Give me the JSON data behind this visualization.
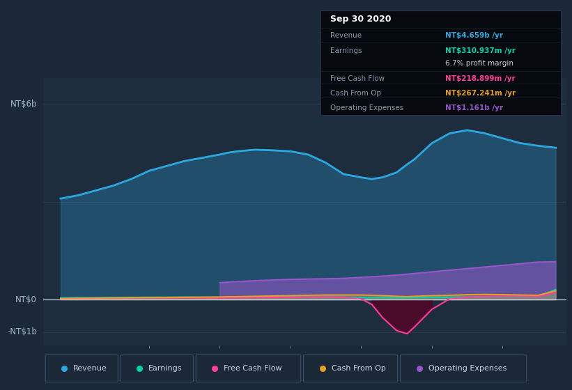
{
  "bg_color": "#1b2838",
  "plot_bg_color": "#1e2d3e",
  "grid_color": "#2a3f55",
  "colors": {
    "revenue": "#2ba8e0",
    "earnings": "#00d4aa",
    "free_cash_flow": "#ff3d9a",
    "cash_from_op": "#e8a020",
    "operating_expenses": "#9955cc"
  },
  "x": [
    2013.75,
    2014.0,
    2014.25,
    2014.5,
    2014.75,
    2015.0,
    2015.25,
    2015.5,
    2015.75,
    2016.0,
    2016.1,
    2016.25,
    2016.5,
    2016.75,
    2017.0,
    2017.25,
    2017.5,
    2017.75,
    2018.0,
    2018.15,
    2018.3,
    2018.5,
    2018.65,
    2018.75,
    2019.0,
    2019.25,
    2019.5,
    2019.75,
    2020.0,
    2020.25,
    2020.5,
    2020.75
  ],
  "revenue": [
    3.1,
    3.2,
    3.35,
    3.5,
    3.7,
    3.95,
    4.1,
    4.25,
    4.35,
    4.45,
    4.5,
    4.55,
    4.6,
    4.58,
    4.55,
    4.45,
    4.2,
    3.85,
    3.75,
    3.7,
    3.75,
    3.9,
    4.15,
    4.3,
    4.8,
    5.1,
    5.2,
    5.1,
    4.95,
    4.8,
    4.72,
    4.659
  ],
  "earnings": [
    0.05,
    0.055,
    0.058,
    0.062,
    0.065,
    0.07,
    0.072,
    0.075,
    0.073,
    0.07,
    0.072,
    0.075,
    0.078,
    0.08,
    0.082,
    0.08,
    0.078,
    0.075,
    0.065,
    0.06,
    0.058,
    0.055,
    0.058,
    0.06,
    0.07,
    0.075,
    0.08,
    0.085,
    0.09,
    0.09,
    0.085,
    0.311
  ],
  "free_cash_flow": [
    0.02,
    0.025,
    0.03,
    0.035,
    0.04,
    0.045,
    0.048,
    0.05,
    0.048,
    0.045,
    0.05,
    0.055,
    0.06,
    0.065,
    0.07,
    0.075,
    0.08,
    0.065,
    0.02,
    -0.15,
    -0.55,
    -0.95,
    -1.05,
    -0.85,
    -0.3,
    0.02,
    0.07,
    0.09,
    0.1,
    0.1,
    0.09,
    0.219
  ],
  "cash_from_op": [
    0.03,
    0.04,
    0.045,
    0.05,
    0.055,
    0.06,
    0.065,
    0.07,
    0.075,
    0.08,
    0.085,
    0.09,
    0.1,
    0.11,
    0.12,
    0.13,
    0.14,
    0.14,
    0.14,
    0.13,
    0.12,
    0.1,
    0.09,
    0.1,
    0.12,
    0.13,
    0.15,
    0.16,
    0.15,
    0.14,
    0.13,
    0.267
  ],
  "operating_expenses_start_x": 2015.95,
  "operating_expenses": [
    0.0,
    0.0,
    0.0,
    0.0,
    0.0,
    0.0,
    0.0,
    0.0,
    0.0,
    0.52,
    0.53,
    0.55,
    0.58,
    0.6,
    0.62,
    0.63,
    0.64,
    0.65,
    0.68,
    0.7,
    0.72,
    0.75,
    0.78,
    0.8,
    0.85,
    0.9,
    0.95,
    1.0,
    1.05,
    1.1,
    1.15,
    1.161
  ],
  "xlim": [
    2013.5,
    2020.9
  ],
  "ylim": [
    -1.4,
    6.8
  ],
  "xticks": [
    2015,
    2016,
    2017,
    2018,
    2019,
    2020
  ],
  "ytick_labels": [
    "NT$6b",
    "NT$0",
    "-NT$1b"
  ],
  "ytick_vals": [
    6.0,
    0.0,
    -1.0
  ],
  "tooltip_date": "Sep 30 2020",
  "tooltip_rows": [
    {
      "label": "Revenue",
      "value": "NT$4.659b /yr",
      "color": "#2ba8e0",
      "bold_value": true
    },
    {
      "label": "Earnings",
      "value": "NT$310.937m /yr",
      "color": "#00d4aa",
      "bold_value": true
    },
    {
      "label": "",
      "value": "6.7% profit margin",
      "color": "#cccccc",
      "bold_value": false
    },
    {
      "label": "Free Cash Flow",
      "value": "NT$218.899m /yr",
      "color": "#ff3d9a",
      "bold_value": true
    },
    {
      "label": "Cash From Op",
      "value": "NT$267.241m /yr",
      "color": "#e8a020",
      "bold_value": true
    },
    {
      "label": "Operating Expenses",
      "value": "NT$1.161b /yr",
      "color": "#9955cc",
      "bold_value": true
    }
  ]
}
